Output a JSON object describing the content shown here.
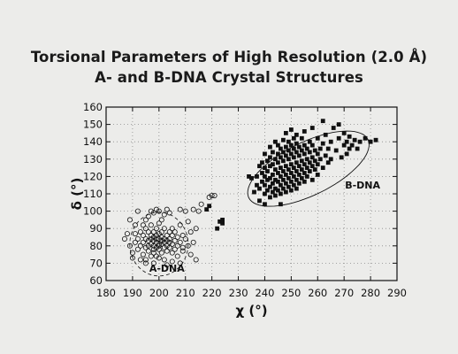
{
  "chart_data": {
    "type": "scatter",
    "title_lines": [
      "Torsional Parameters of High Resolution (2.0 Å)",
      "A- and B-DNA Crystal Structures"
    ],
    "xlabel": "χ (°)",
    "ylabel": "δ (°)",
    "xlim": [
      180,
      290
    ],
    "ylim": [
      60,
      160
    ],
    "xticks": [
      180,
      190,
      200,
      210,
      220,
      230,
      240,
      250,
      260,
      270,
      280,
      290
    ],
    "yticks": [
      60,
      70,
      80,
      90,
      100,
      110,
      120,
      130,
      140,
      150,
      160
    ],
    "grid": true,
    "colors": {
      "axis": "#111111",
      "grid": "#8a8a8a",
      "marker": "#111111",
      "background": "#ececea"
    },
    "annotations": [
      {
        "text": "B-DNA",
        "x": 277,
        "y": 113
      },
      {
        "text": "A-DNA",
        "x": 203,
        "y": 65
      }
    ],
    "series": [
      {
        "marker": "open-circle",
        "values": [
          [
            187,
            84
          ],
          [
            189,
            80
          ],
          [
            190,
            76
          ],
          [
            191,
            82
          ],
          [
            191,
            87
          ],
          [
            192,
            78
          ],
          [
            192,
            84
          ],
          [
            193,
            72
          ],
          [
            193,
            88
          ],
          [
            193,
            80
          ],
          [
            194,
            86
          ],
          [
            194,
            75
          ],
          [
            194,
            82
          ],
          [
            195,
            79
          ],
          [
            195,
            84
          ],
          [
            195,
            90
          ],
          [
            195,
            70
          ],
          [
            196,
            77
          ],
          [
            196,
            83
          ],
          [
            196,
            88
          ],
          [
            196,
            80
          ],
          [
            197,
            74
          ],
          [
            197,
            86
          ],
          [
            197,
            81
          ],
          [
            197,
            92
          ],
          [
            197,
            84
          ],
          [
            198,
            78
          ],
          [
            198,
            83
          ],
          [
            198,
            88
          ],
          [
            198,
            80
          ],
          [
            198,
            85
          ],
          [
            198,
            76
          ],
          [
            199,
            82
          ],
          [
            199,
            86
          ],
          [
            199,
            79
          ],
          [
            199,
            90
          ],
          [
            199,
            84
          ],
          [
            199,
            74
          ],
          [
            200,
            81
          ],
          [
            200,
            87
          ],
          [
            200,
            78
          ],
          [
            200,
            84
          ],
          [
            200,
            93
          ],
          [
            200,
            80
          ],
          [
            201,
            83
          ],
          [
            201,
            76
          ],
          [
            201,
            88
          ],
          [
            201,
            81
          ],
          [
            201,
            85
          ],
          [
            202,
            79
          ],
          [
            202,
            84
          ],
          [
            202,
            90
          ],
          [
            202,
            82
          ],
          [
            202,
            72
          ],
          [
            203,
            86
          ],
          [
            203,
            80
          ],
          [
            203,
            83
          ],
          [
            203,
            77
          ],
          [
            204,
            84
          ],
          [
            204,
            88
          ],
          [
            204,
            79
          ],
          [
            204,
            82
          ],
          [
            205,
            81
          ],
          [
            205,
            86
          ],
          [
            205,
            76
          ],
          [
            205,
            90
          ],
          [
            206,
            83
          ],
          [
            206,
            78
          ],
          [
            206,
            88
          ],
          [
            207,
            80
          ],
          [
            207,
            85
          ],
          [
            207,
            74
          ],
          [
            208,
            82
          ],
          [
            208,
            92
          ],
          [
            209,
            79
          ],
          [
            209,
            86
          ],
          [
            210,
            84
          ],
          [
            211,
            80
          ],
          [
            212,
            88
          ],
          [
            213,
            82
          ],
          [
            196,
            97
          ],
          [
            198,
            99
          ],
          [
            200,
            100
          ],
          [
            202,
            98
          ],
          [
            204,
            99
          ],
          [
            195,
            95
          ],
          [
            197,
            100
          ],
          [
            192,
            100
          ],
          [
            199,
            101
          ],
          [
            203,
            101
          ],
          [
            208,
            101
          ],
          [
            210,
            100
          ],
          [
            213,
            101
          ],
          [
            215,
            100
          ],
          [
            216,
            104
          ],
          [
            219,
            108
          ],
          [
            220,
            109
          ],
          [
            221,
            109
          ],
          [
            189,
            95
          ],
          [
            194,
            92
          ],
          [
            191,
            92
          ],
          [
            188,
            87
          ],
          [
            195,
            72
          ],
          [
            198,
            70
          ],
          [
            203,
            69
          ],
          [
            208,
            70
          ],
          [
            212,
            75
          ],
          [
            214,
            72
          ],
          [
            200,
            73
          ],
          [
            205,
            71
          ],
          [
            190,
            73
          ],
          [
            209,
            77
          ],
          [
            211,
            94
          ],
          [
            214,
            90
          ],
          [
            201,
            95
          ]
        ]
      },
      {
        "marker": "filled-square",
        "values": [
          [
            218,
            101
          ],
          [
            219,
            103
          ],
          [
            222,
            90
          ],
          [
            223,
            94
          ],
          [
            224,
            95
          ],
          [
            224,
            93
          ],
          [
            234,
            120
          ],
          [
            235,
            119
          ],
          [
            236,
            111
          ],
          [
            237,
            115
          ],
          [
            237,
            120
          ],
          [
            238,
            126
          ],
          [
            238,
            113
          ],
          [
            238,
            106
          ],
          [
            239,
            117
          ],
          [
            239,
            122
          ],
          [
            239,
            128
          ],
          [
            240,
            110
          ],
          [
            240,
            115
          ],
          [
            240,
            120
          ],
          [
            240,
            125
          ],
          [
            240,
            133
          ],
          [
            240,
            104
          ],
          [
            241,
            112
          ],
          [
            241,
            118
          ],
          [
            241,
            123
          ],
          [
            241,
            129
          ],
          [
            242,
            108
          ],
          [
            242,
            114
          ],
          [
            242,
            119
          ],
          [
            242,
            126
          ],
          [
            242,
            131
          ],
          [
            242,
            137
          ],
          [
            243,
            111
          ],
          [
            243,
            116
          ],
          [
            243,
            121
          ],
          [
            243,
            127
          ],
          [
            243,
            134
          ],
          [
            244,
            109
          ],
          [
            244,
            113
          ],
          [
            244,
            118
          ],
          [
            244,
            124
          ],
          [
            244,
            130
          ],
          [
            244,
            140
          ],
          [
            245,
            112
          ],
          [
            245,
            117
          ],
          [
            245,
            122
          ],
          [
            245,
            128
          ],
          [
            245,
            133
          ],
          [
            245,
            138
          ],
          [
            246,
            110
          ],
          [
            246,
            115
          ],
          [
            246,
            120
          ],
          [
            246,
            125
          ],
          [
            246,
            131
          ],
          [
            246,
            136
          ],
          [
            246,
            104
          ],
          [
            247,
            113
          ],
          [
            247,
            118
          ],
          [
            247,
            123
          ],
          [
            247,
            129
          ],
          [
            247,
            134
          ],
          [
            247,
            141
          ],
          [
            248,
            111
          ],
          [
            248,
            116
          ],
          [
            248,
            121
          ],
          [
            248,
            126
          ],
          [
            248,
            132
          ],
          [
            248,
            137
          ],
          [
            248,
            145
          ],
          [
            249,
            114
          ],
          [
            249,
            119
          ],
          [
            249,
            124
          ],
          [
            249,
            130
          ],
          [
            249,
            135
          ],
          [
            249,
            140
          ],
          [
            250,
            112
          ],
          [
            250,
            117
          ],
          [
            250,
            122
          ],
          [
            250,
            127
          ],
          [
            250,
            133
          ],
          [
            250,
            138
          ],
          [
            250,
            147
          ],
          [
            251,
            115
          ],
          [
            251,
            120
          ],
          [
            251,
            125
          ],
          [
            251,
            131
          ],
          [
            251,
            136
          ],
          [
            251,
            142
          ],
          [
            252,
            113
          ],
          [
            252,
            118
          ],
          [
            252,
            123
          ],
          [
            252,
            128
          ],
          [
            252,
            134
          ],
          [
            252,
            139
          ],
          [
            252,
            144
          ],
          [
            253,
            116
          ],
          [
            253,
            121
          ],
          [
            253,
            126
          ],
          [
            253,
            132
          ],
          [
            253,
            137
          ],
          [
            254,
            119
          ],
          [
            254,
            124
          ],
          [
            254,
            129
          ],
          [
            254,
            135
          ],
          [
            254,
            142
          ],
          [
            255,
            117
          ],
          [
            255,
            122
          ],
          [
            255,
            127
          ],
          [
            255,
            133
          ],
          [
            255,
            138
          ],
          [
            255,
            146
          ],
          [
            256,
            120
          ],
          [
            256,
            125
          ],
          [
            256,
            130
          ],
          [
            256,
            136
          ],
          [
            257,
            123
          ],
          [
            257,
            128
          ],
          [
            257,
            134
          ],
          [
            257,
            140
          ],
          [
            258,
            118
          ],
          [
            258,
            126
          ],
          [
            258,
            131
          ],
          [
            258,
            138
          ],
          [
            258,
            148
          ],
          [
            259,
            124
          ],
          [
            259,
            129
          ],
          [
            259,
            135
          ],
          [
            260,
            121
          ],
          [
            260,
            127
          ],
          [
            260,
            133
          ],
          [
            260,
            142
          ],
          [
            261,
            130
          ],
          [
            261,
            136
          ],
          [
            262,
            125
          ],
          [
            262,
            139
          ],
          [
            262,
            152
          ],
          [
            263,
            132
          ],
          [
            263,
            144
          ],
          [
            264,
            128
          ],
          [
            264,
            136
          ],
          [
            265,
            140
          ],
          [
            265,
            130
          ],
          [
            266,
            148
          ],
          [
            267,
            135
          ],
          [
            268,
            142
          ],
          [
            268,
            150
          ],
          [
            269,
            131
          ],
          [
            270,
            138
          ],
          [
            270,
            145
          ],
          [
            271,
            140
          ],
          [
            271,
            133
          ],
          [
            272,
            136
          ],
          [
            272,
            143
          ],
          [
            273,
            138
          ],
          [
            274,
            141
          ],
          [
            275,
            136
          ],
          [
            276,
            140
          ],
          [
            278,
            142
          ],
          [
            280,
            140
          ],
          [
            282,
            141
          ]
        ]
      }
    ]
  }
}
